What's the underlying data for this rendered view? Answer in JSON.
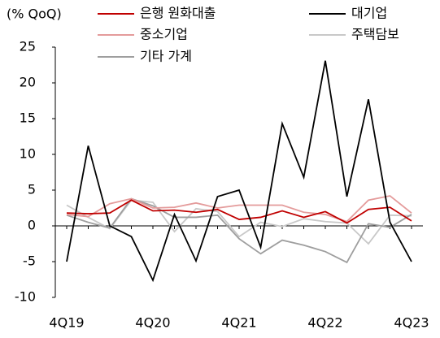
{
  "chart_data": {
    "type": "line",
    "y_label": "(% QoQ)",
    "categories": [
      "4Q19",
      null,
      null,
      null,
      "4Q20",
      null,
      null,
      null,
      "4Q21",
      null,
      null,
      null,
      "4Q22",
      null,
      null,
      null,
      "4Q23"
    ],
    "ylim": [
      -10,
      25
    ],
    "yticks": [
      -10,
      -5,
      0,
      5,
      10,
      15,
      20,
      25
    ],
    "series": [
      {
        "name": "은행 원화대출",
        "color": "#c00000",
        "values": [
          1.8,
          1.7,
          1.8,
          3.6,
          2.1,
          2.2,
          1.9,
          2.3,
          0.9,
          1.2,
          2.1,
          1.2,
          2.0,
          0.4,
          2.3,
          2.6,
          0.7
        ]
      },
      {
        "name": "대기업",
        "color": "#000000",
        "values": [
          -5.0,
          11.2,
          0.0,
          -1.5,
          -7.6,
          1.6,
          -4.9,
          4.1,
          5.0,
          -3.0,
          14.3,
          6.8,
          23.1,
          4.1,
          17.7,
          0.5,
          -5.0
        ]
      },
      {
        "name": "중소기업",
        "color": "#e49b9b",
        "values": [
          1.6,
          1.3,
          3.1,
          3.8,
          2.5,
          2.6,
          3.2,
          2.5,
          2.9,
          2.9,
          2.9,
          1.9,
          1.6,
          0.6,
          3.6,
          4.2,
          1.8
        ]
      },
      {
        "name": "주택담보",
        "color": "#c8c8c8",
        "values": [
          2.9,
          1.2,
          -0.4,
          3.6,
          3.3,
          -0.8,
          2.4,
          2.0,
          -1.5,
          0.5,
          -0.1,
          1.0,
          0.6,
          0.4,
          -2.5,
          1.5,
          1.4
        ]
      },
      {
        "name": "기타 가계",
        "color": "#9e9e9e",
        "values": [
          1.5,
          0.5,
          -0.3,
          3.8,
          2.8,
          1.2,
          1.2,
          1.5,
          -1.8,
          -3.9,
          -2.0,
          -2.7,
          -3.6,
          -5.1,
          0.3,
          -0.2,
          1.6
        ]
      }
    ]
  }
}
